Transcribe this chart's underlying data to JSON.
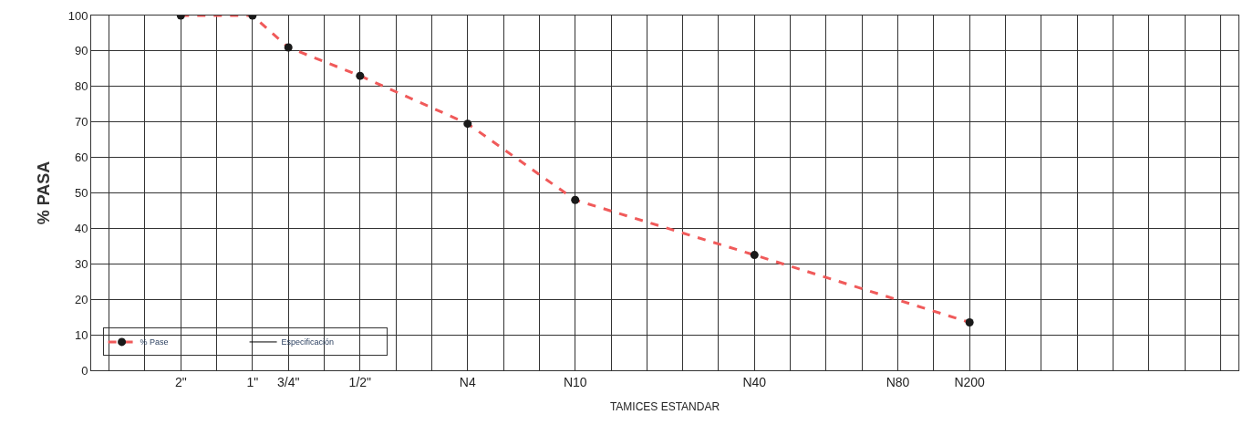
{
  "chart_data": {
    "type": "line",
    "xlabel": "TAMICES ESTANDAR",
    "ylabel": "% PASA",
    "categories": [
      null,
      null,
      "2\"",
      null,
      "1\"",
      "3/4\"",
      null,
      "1/2\"",
      null,
      null,
      "N4",
      null,
      null,
      "N10",
      null,
      null,
      null,
      null,
      "N40",
      null,
      null,
      null,
      "N80",
      null,
      "N200",
      null,
      null,
      null,
      null,
      null,
      null,
      null
    ],
    "ylim": [
      0,
      100
    ],
    "yticks": [
      0,
      10,
      20,
      30,
      40,
      50,
      60,
      70,
      80,
      90,
      100
    ],
    "grid": true,
    "legend": "bottom left",
    "marker": "circle",
    "line_style": "dashed",
    "series": [
      {
        "name": "% Pase",
        "color": "#f05a5a",
        "values": [
          null,
          null,
          100,
          null,
          100,
          91,
          null,
          83,
          null,
          null,
          69.5,
          null,
          null,
          48,
          null,
          null,
          null,
          null,
          32.5,
          null,
          null,
          null,
          null,
          null,
          13.5,
          null,
          null,
          null,
          null,
          null,
          null,
          null
        ]
      },
      {
        "name": "Especificación",
        "color": "#000000",
        "values": [
          null,
          null,
          null,
          null,
          null,
          null,
          null,
          null,
          null,
          null,
          null,
          null,
          null,
          null,
          null,
          null,
          null,
          null,
          null,
          null,
          null,
          null,
          null,
          null,
          null,
          null,
          null,
          null,
          null,
          null,
          null,
          null
        ],
        "marker": "none",
        "line_style": "solid"
      }
    ]
  }
}
